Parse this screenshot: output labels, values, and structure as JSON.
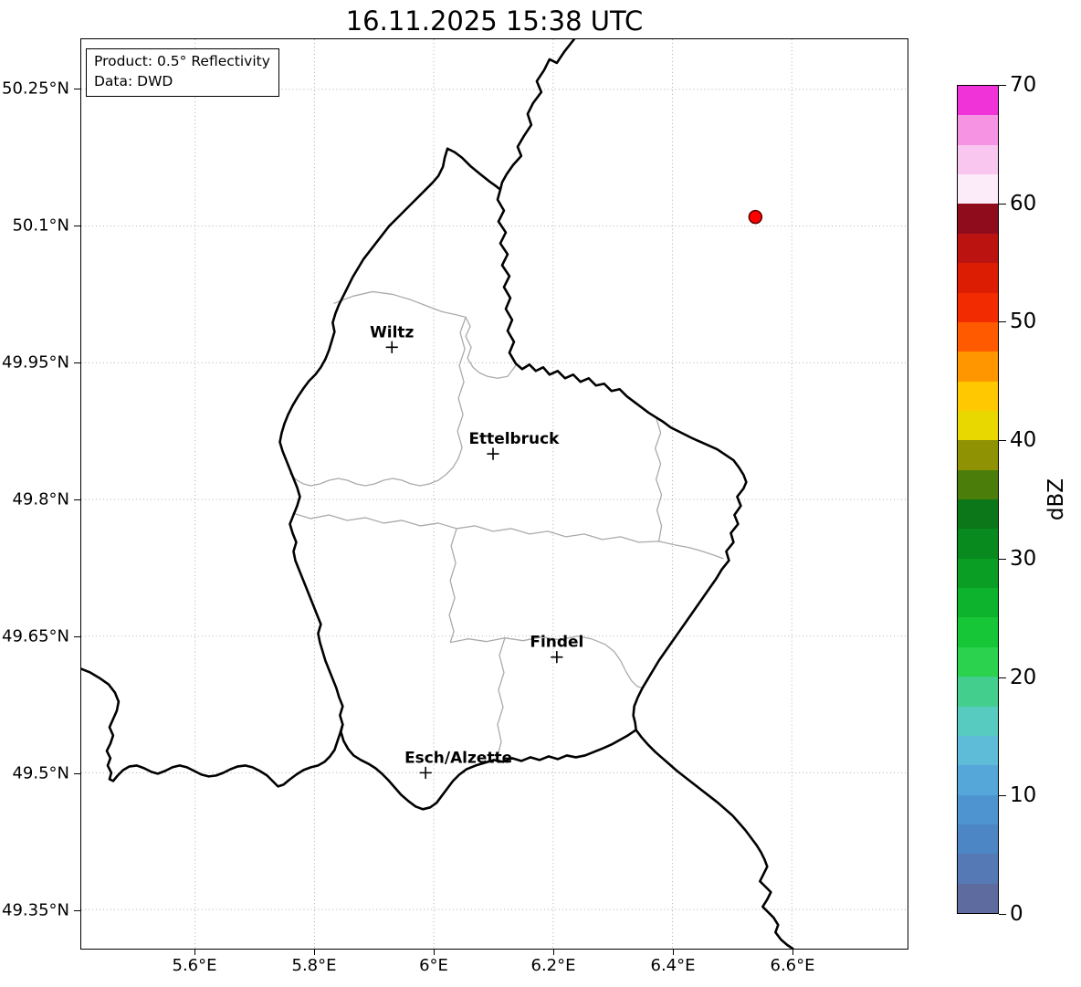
{
  "title": "16.11.2025 15:38 UTC",
  "info_box": {
    "product": "Product: 0.5° Reflectivity",
    "data_source": "Data: DWD"
  },
  "map": {
    "x_ticks": [
      "5.6°E",
      "5.8°E",
      "6°E",
      "6.2°E",
      "6.4°E",
      "6.6°E"
    ],
    "y_ticks": [
      "50.25°N",
      "50.1°N",
      "49.95°N",
      "49.8°N",
      "49.65°N",
      "49.5°N",
      "49.35°N"
    ],
    "cities": [
      {
        "name": "Wiltz"
      },
      {
        "name": "Ettelbruck"
      },
      {
        "name": "Findel"
      },
      {
        "name": "Esch/Alzette"
      }
    ],
    "radar_dot_color": "#ff0000",
    "country_border_color": "#000000",
    "district_border_color": "#aaaaaa"
  },
  "colorbar": {
    "label": "dBZ",
    "tick_labels": [
      "0",
      "10",
      "20",
      "30",
      "40",
      "50",
      "60",
      "70"
    ],
    "value_min": 0,
    "value_max": 70,
    "colors_bottom_to_top": [
      "#5d6b9e",
      "#5579b4",
      "#4d86c4",
      "#4d94d1",
      "#55a7da",
      "#5fbcd9",
      "#57cbc0",
      "#43ce8e",
      "#2ad24e",
      "#17c636",
      "#0db32c",
      "#0a9e25",
      "#098a1f",
      "#0b7719",
      "#4b7d0b",
      "#8f9203",
      "#e8d800",
      "#ffc800",
      "#ff9600",
      "#ff5a00",
      "#f22c00",
      "#dd1c04",
      "#bb1310",
      "#8f0c1c",
      "#fcebf9",
      "#f9c6f0",
      "#f793e3",
      "#ef33d8"
    ]
  }
}
